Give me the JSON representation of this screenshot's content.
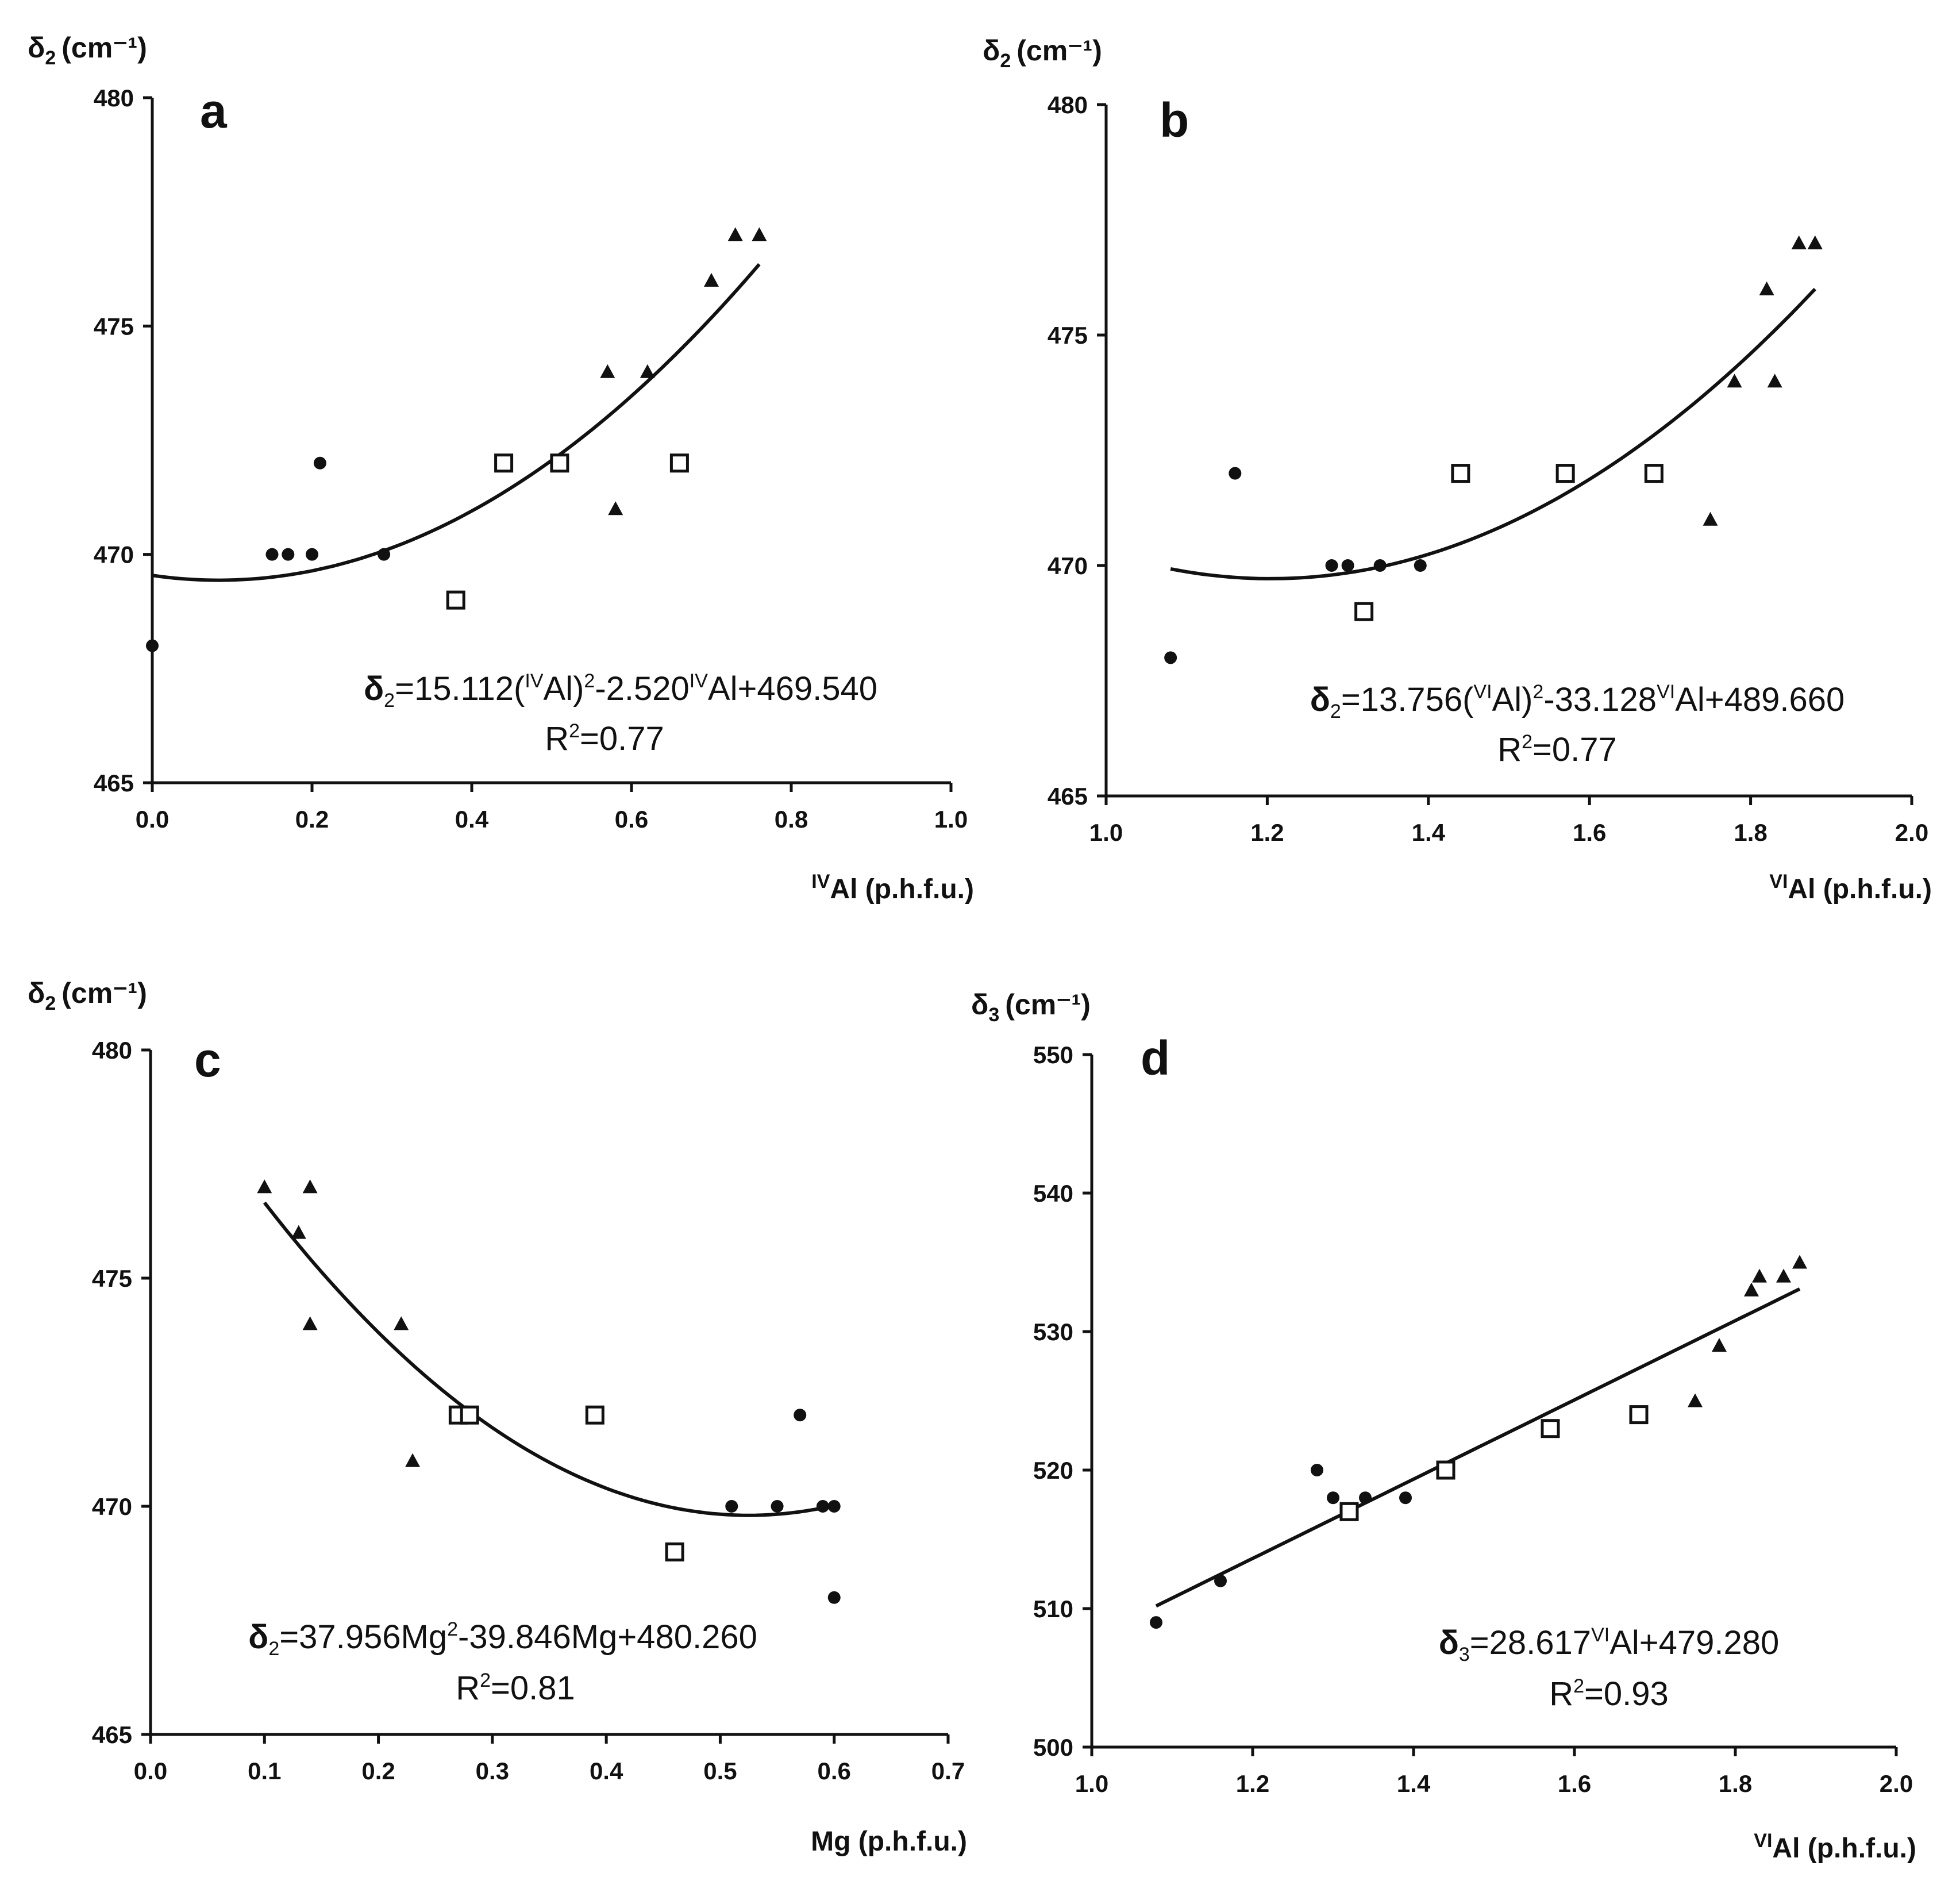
{
  "chart_data": [
    {
      "panel": "a",
      "type": "scatter",
      "ylabel": "δ2 (cm⁻¹)",
      "ylabel_main": "δ",
      "ylabel_sub": "2",
      "ylabel_unit": "(cm⁻¹)",
      "xlabel": "IVAl (p.h.f.u.)",
      "xlabel_sup": "IV",
      "xlabel_main": "Al (p.h.f.u.)",
      "xlim": [
        0.0,
        1.0
      ],
      "ylim": [
        465,
        480
      ],
      "xticks": [
        "0.0",
        "0.2",
        "0.4",
        "0.6",
        "0.8",
        "1.0"
      ],
      "yticks": [
        "465",
        "470",
        "475",
        "480"
      ],
      "series": [
        {
          "name": "circles",
          "marker": "circle",
          "points": [
            [
              0.0,
              468
            ],
            [
              0.15,
              470
            ],
            [
              0.17,
              470
            ],
            [
              0.2,
              470
            ],
            [
              0.21,
              472
            ],
            [
              0.29,
              470
            ]
          ]
        },
        {
          "name": "squares",
          "marker": "square",
          "points": [
            [
              0.38,
              469
            ],
            [
              0.44,
              472
            ],
            [
              0.51,
              472
            ],
            [
              0.66,
              472
            ]
          ]
        },
        {
          "name": "triangles",
          "marker": "triangle",
          "points": [
            [
              0.57,
              474
            ],
            [
              0.58,
              471
            ],
            [
              0.62,
              474
            ],
            [
              0.7,
              476
            ],
            [
              0.73,
              477
            ],
            [
              0.76,
              477
            ]
          ]
        }
      ],
      "fit": {
        "kind": "poly2",
        "a": 15.112,
        "b": -2.52,
        "c": 469.54,
        "x_from": 0.0,
        "x_to": 0.76
      },
      "equation": {
        "lhs": "δ",
        "lhs_sub": "2",
        "p1": "=15.112(",
        "sup1": "IV",
        "p2": "Al)",
        "sup2": "2",
        "p3": "-2.520",
        "sup3": "IV",
        "p4": "Al+469.540",
        "r2_pre": "R",
        "r2_sup": "2",
        "r2_post": "=0.77"
      }
    },
    {
      "panel": "b",
      "type": "scatter",
      "ylabel": "δ2 (cm⁻¹)",
      "ylabel_main": "δ",
      "ylabel_sub": "2",
      "ylabel_unit": "(cm⁻¹)",
      "xlabel": "VIAl (p.h.f.u.)",
      "xlabel_sup": "VI",
      "xlabel_main": "Al (p.h.f.u.)",
      "xlim": [
        1.0,
        2.0
      ],
      "ylim": [
        465,
        480
      ],
      "xticks": [
        "1.0",
        "1.2",
        "1.4",
        "1.6",
        "1.8",
        "2.0"
      ],
      "yticks": [
        "465",
        "470",
        "475",
        "480"
      ],
      "series": [
        {
          "name": "circles",
          "marker": "circle",
          "points": [
            [
              1.08,
              468
            ],
            [
              1.16,
              472
            ],
            [
              1.28,
              470
            ],
            [
              1.3,
              470
            ],
            [
              1.34,
              470
            ],
            [
              1.39,
              470
            ]
          ]
        },
        {
          "name": "squares",
          "marker": "square",
          "points": [
            [
              1.32,
              469
            ],
            [
              1.44,
              472
            ],
            [
              1.57,
              472
            ],
            [
              1.68,
              472
            ]
          ]
        },
        {
          "name": "triangles",
          "marker": "triangle",
          "points": [
            [
              1.75,
              471
            ],
            [
              1.78,
              474
            ],
            [
              1.82,
              476
            ],
            [
              1.83,
              474
            ],
            [
              1.86,
              477
            ],
            [
              1.88,
              477
            ]
          ]
        }
      ],
      "fit": {
        "kind": "poly2",
        "a": 13.756,
        "b": -33.128,
        "c": 489.66,
        "x_from": 1.08,
        "x_to": 1.88
      },
      "equation": {
        "lhs": "δ",
        "lhs_sub": "2",
        "p1": "=13.756(",
        "sup1": "VI",
        "p2": "Al)",
        "sup2": "2",
        "p3": "-33.128",
        "sup3": "VI",
        "p4": "Al+489.660",
        "r2_pre": "R",
        "r2_sup": "2",
        "r2_post": "=0.77"
      }
    },
    {
      "panel": "c",
      "type": "scatter",
      "ylabel": "δ2 (cm⁻¹)",
      "ylabel_main": "δ",
      "ylabel_sub": "2",
      "ylabel_unit": "(cm⁻¹)",
      "xlabel": "Mg (p.h.f.u.)",
      "xlabel_sup": "",
      "xlabel_main": "Mg (p.h.f.u.)",
      "xlim": [
        0.0,
        0.7
      ],
      "ylim": [
        465,
        480
      ],
      "xticks": [
        "0.0",
        "0.1",
        "0.2",
        "0.3",
        "0.4",
        "0.5",
        "0.6",
        "0.7"
      ],
      "yticks": [
        "465",
        "470",
        "475",
        "480"
      ],
      "series": [
        {
          "name": "circles",
          "marker": "circle",
          "points": [
            [
              0.51,
              470
            ],
            [
              0.55,
              470
            ],
            [
              0.57,
              472
            ],
            [
              0.59,
              470
            ],
            [
              0.6,
              470
            ],
            [
              0.6,
              468
            ]
          ]
        },
        {
          "name": "squares",
          "marker": "square",
          "points": [
            [
              0.27,
              472
            ],
            [
              0.28,
              472
            ],
            [
              0.39,
              472
            ],
            [
              0.46,
              469
            ]
          ]
        },
        {
          "name": "triangles",
          "marker": "triangle",
          "points": [
            [
              0.1,
              477
            ],
            [
              0.13,
              476
            ],
            [
              0.14,
              477
            ],
            [
              0.14,
              474
            ],
            [
              0.22,
              474
            ],
            [
              0.23,
              471
            ]
          ]
        }
      ],
      "fit": {
        "kind": "poly2",
        "a": 37.956,
        "b": -39.846,
        "c": 480.26,
        "x_from": 0.1,
        "x_to": 0.6
      },
      "equation": {
        "lhs": "δ",
        "lhs_sub": "2",
        "p1": "=37.956Mg",
        "sup1": "2",
        "p2": "-39.846Mg+480.260",
        "sup2": "",
        "p3": "",
        "sup3": "",
        "p4": "",
        "r2_pre": "R",
        "r2_sup": "2",
        "r2_post": "=0.81"
      }
    },
    {
      "panel": "d",
      "type": "scatter",
      "ylabel": "δ3 (cm⁻¹)",
      "ylabel_main": "δ",
      "ylabel_sub": "3",
      "ylabel_unit": "(cm⁻¹)",
      "xlabel": "VIAl (p.h.f.u.)",
      "xlabel_sup": "VI",
      "xlabel_main": "Al (p.h.f.u.)",
      "xlim": [
        1.0,
        2.0
      ],
      "ylim": [
        500,
        550
      ],
      "xticks": [
        "1.0",
        "1.2",
        "1.4",
        "1.6",
        "1.8",
        "2.0"
      ],
      "yticks": [
        "500",
        "510",
        "520",
        "530",
        "540",
        "550"
      ],
      "series": [
        {
          "name": "circles",
          "marker": "circle",
          "points": [
            [
              1.08,
              509
            ],
            [
              1.16,
              512
            ],
            [
              1.28,
              520
            ],
            [
              1.3,
              518
            ],
            [
              1.34,
              518
            ],
            [
              1.39,
              518
            ]
          ]
        },
        {
          "name": "squares",
          "marker": "square",
          "points": [
            [
              1.32,
              517
            ],
            [
              1.44,
              520
            ],
            [
              1.57,
              523
            ],
            [
              1.68,
              524
            ]
          ]
        },
        {
          "name": "triangles",
          "marker": "triangle",
          "points": [
            [
              1.75,
              525
            ],
            [
              1.78,
              529
            ],
            [
              1.82,
              533
            ],
            [
              1.83,
              534
            ],
            [
              1.86,
              534
            ],
            [
              1.88,
              535
            ]
          ]
        }
      ],
      "fit": {
        "kind": "linear",
        "a": 0,
        "b": 28.617,
        "c": 479.28,
        "x_from": 1.08,
        "x_to": 1.88
      },
      "equation": {
        "lhs": "δ",
        "lhs_sub": "3",
        "p1": "=28.617",
        "sup1": "VI",
        "p2": "Al+479.280",
        "sup2": "",
        "p3": "",
        "sup3": "",
        "p4": "",
        "r2_pre": "R",
        "r2_sup": "2",
        "r2_post": "=0.93"
      }
    }
  ]
}
